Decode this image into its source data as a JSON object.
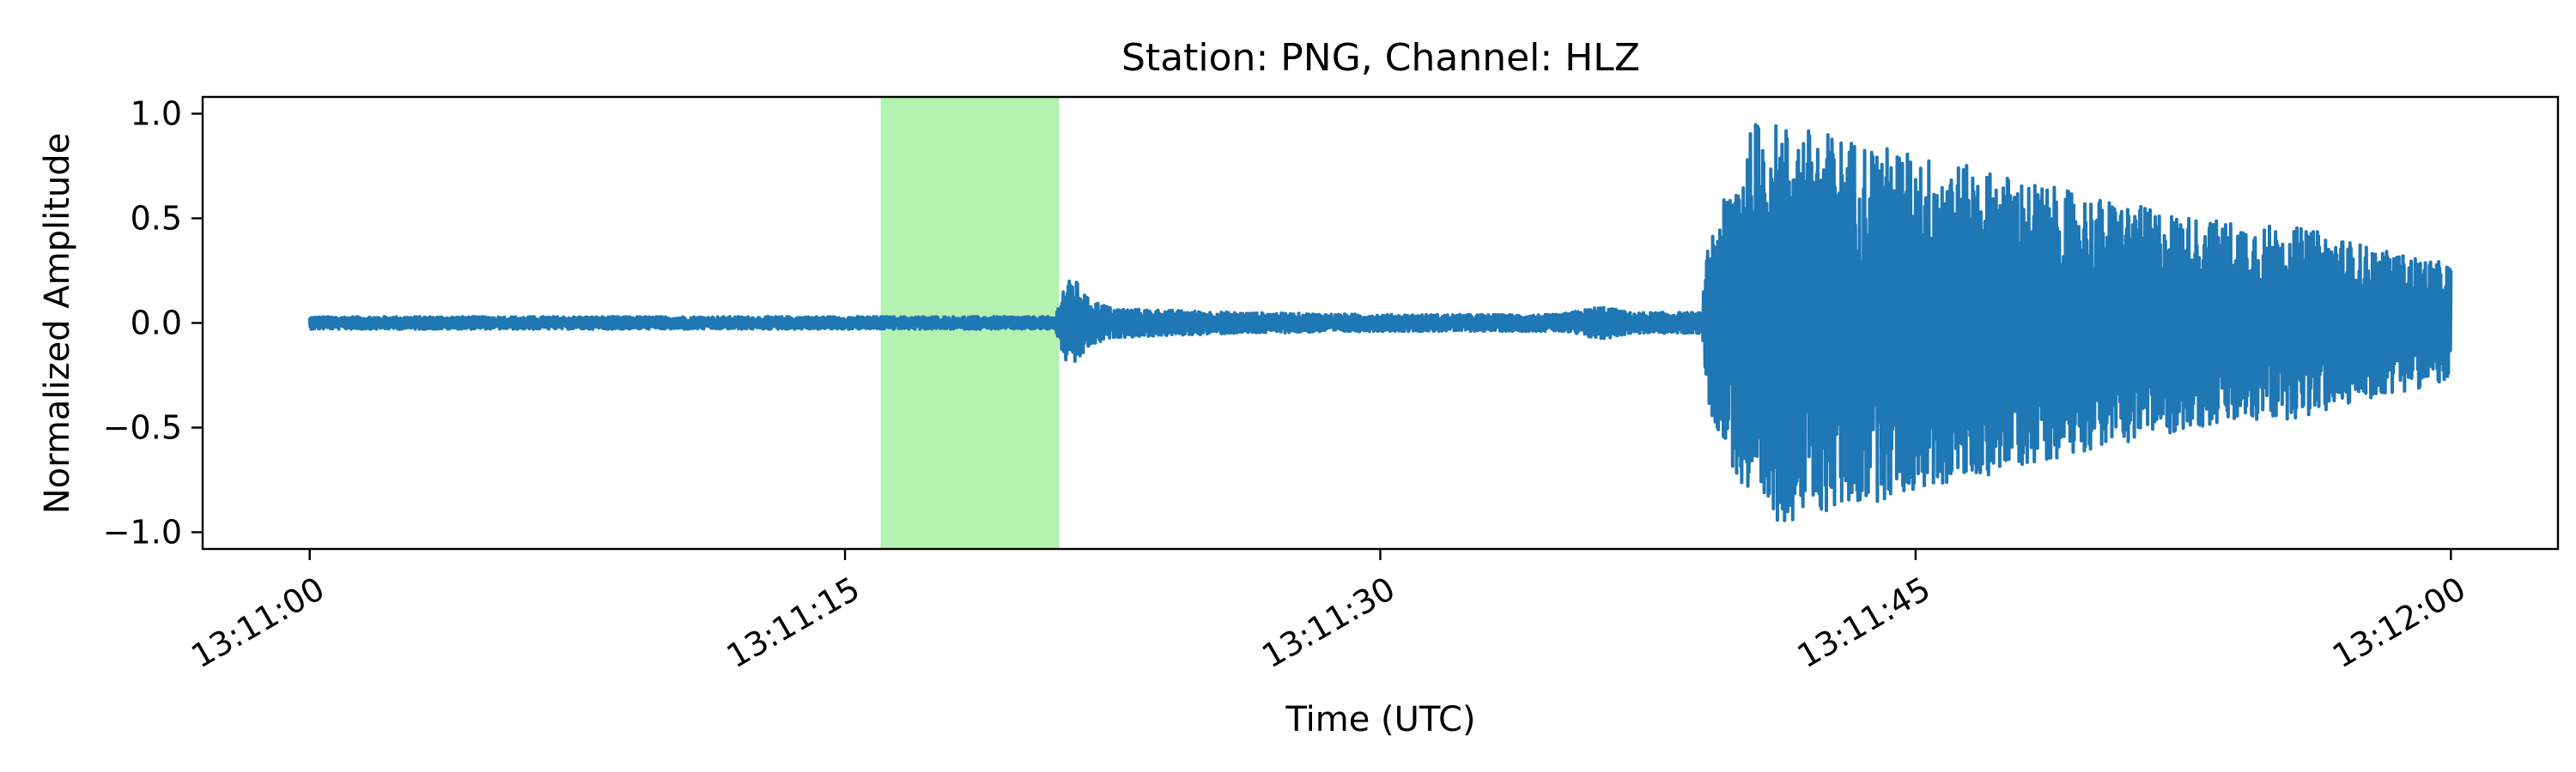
{
  "chart_data": {
    "type": "line",
    "title": "Station: PNG, Channel: HLZ",
    "xlabel": "Time (UTC)",
    "ylabel": "Normalized Amplitude",
    "xlim_seconds_after_13_11_00": [
      -3,
      63
    ],
    "ylim": [
      -1.08,
      1.08
    ],
    "grid": false,
    "xticks": [
      {
        "value": 0,
        "label": "13:11:00"
      },
      {
        "value": 15,
        "label": "13:11:15"
      },
      {
        "value": 30,
        "label": "13:11:30"
      },
      {
        "value": 45,
        "label": "13:11:45"
      },
      {
        "value": 60,
        "label": "13:12:00"
      }
    ],
    "yticks": [
      {
        "value": 1.0,
        "label": "1.0"
      },
      {
        "value": 0.5,
        "label": "0.5"
      },
      {
        "value": 0.0,
        "label": "0.0"
      },
      {
        "value": -0.5,
        "label": "−0.5"
      },
      {
        "value": -1.0,
        "label": "−1.0"
      }
    ],
    "highlight_window": {
      "start": 16,
      "end": 21,
      "color": "#b3f2b0"
    },
    "series": [
      {
        "color": "#1f77b4",
        "envelope": [
          {
            "t": 0,
            "amp": 0.03
          },
          {
            "t": 15.5,
            "amp": 0.03
          },
          {
            "t": 20.9,
            "amp": 0.03
          },
          {
            "t": 21.1,
            "amp": 0.17
          },
          {
            "t": 21.4,
            "amp": 0.22
          },
          {
            "t": 21.8,
            "amp": 0.12
          },
          {
            "t": 22.5,
            "amp": 0.07
          },
          {
            "t": 26,
            "amp": 0.05
          },
          {
            "t": 30,
            "amp": 0.04
          },
          {
            "t": 35,
            "amp": 0.04
          },
          {
            "t": 36.2,
            "amp": 0.08
          },
          {
            "t": 37,
            "amp": 0.05
          },
          {
            "t": 39.0,
            "amp": 0.05
          },
          {
            "t": 39.2,
            "amp": 0.4
          },
          {
            "t": 40.5,
            "amp": 0.97
          },
          {
            "t": 42,
            "amp": 0.93
          },
          {
            "t": 44,
            "amp": 0.85
          },
          {
            "t": 47,
            "amp": 0.73
          },
          {
            "t": 50,
            "amp": 0.6
          },
          {
            "t": 53,
            "amp": 0.5
          },
          {
            "t": 56,
            "amp": 0.45
          },
          {
            "t": 58,
            "amp": 0.35
          },
          {
            "t": 60,
            "amp": 0.28
          }
        ]
      }
    ]
  }
}
